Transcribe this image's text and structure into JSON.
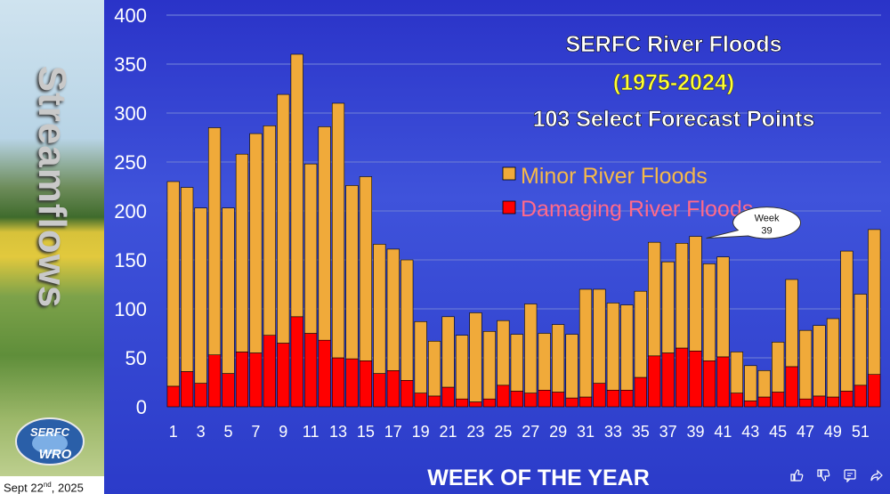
{
  "sidebar": {
    "title": "Streamflows",
    "logo_top": "SERFC",
    "logo_bottom": "WRO",
    "date_main": "Sept 22",
    "date_sup": "nd",
    "date_year": ", 2025"
  },
  "chart_data": {
    "type": "bar",
    "stacked": true,
    "title": "SERFC River Floods",
    "subtitle": "(1975-2024)",
    "subtitle2": "103 Select Forecast Points",
    "xlabel": "WEEK OF THE YEAR",
    "ylabel": "",
    "ylim": [
      0,
      400
    ],
    "yticks": [
      0,
      50,
      100,
      150,
      200,
      250,
      300,
      350,
      400
    ],
    "xtick_labels": [
      "1",
      "3",
      "5",
      "7",
      "9",
      "11",
      "13",
      "15",
      "17",
      "19",
      "21",
      "23",
      "25",
      "27",
      "29",
      "31",
      "33",
      "35",
      "37",
      "39",
      "41",
      "43",
      "45",
      "47",
      "49",
      "51"
    ],
    "categories": [
      1,
      2,
      3,
      4,
      5,
      6,
      7,
      8,
      9,
      10,
      11,
      12,
      13,
      14,
      15,
      16,
      17,
      18,
      19,
      20,
      21,
      22,
      23,
      24,
      25,
      26,
      27,
      28,
      29,
      30,
      31,
      32,
      33,
      34,
      35,
      36,
      37,
      38,
      39,
      40,
      41,
      42,
      43,
      44,
      45,
      46,
      47,
      48,
      49,
      50,
      51,
      52
    ],
    "totals": [
      230,
      224,
      203,
      285,
      203,
      258,
      279,
      287,
      319,
      360,
      248,
      286,
      310,
      226,
      235,
      166,
      161,
      150,
      87,
      67,
      92,
      73,
      96,
      77,
      88,
      74,
      105,
      75,
      84,
      74,
      120,
      120,
      106,
      104,
      118,
      168,
      148,
      167,
      174,
      146,
      153,
      56,
      42,
      37,
      66,
      130,
      78,
      83,
      90,
      159,
      115,
      181
    ],
    "legend": [
      "Minor River Floods",
      "Damaging River Floods"
    ],
    "legend_position": "top-right",
    "series": [
      {
        "name": "Damaging River Floods",
        "color": "#ff0000",
        "values": [
          21,
          36,
          24,
          53,
          34,
          56,
          55,
          73,
          65,
          92,
          75,
          68,
          50,
          49,
          47,
          34,
          37,
          27,
          14,
          11,
          20,
          8,
          5,
          8,
          22,
          16,
          14,
          17,
          15,
          9,
          10,
          24,
          17,
          17,
          30,
          52,
          55,
          60,
          57,
          47,
          51,
          14,
          6,
          10,
          15,
          41,
          8,
          11,
          10,
          16,
          22,
          33
        ]
      },
      {
        "name": "Minor River Floods",
        "color": "#f0aa3a",
        "values": [
          209,
          188,
          179,
          232,
          169,
          202,
          224,
          214,
          254,
          268,
          173,
          218,
          260,
          177,
          188,
          132,
          124,
          123,
          73,
          56,
          72,
          65,
          91,
          69,
          66,
          58,
          91,
          58,
          69,
          65,
          110,
          96,
          89,
          87,
          88,
          116,
          93,
          107,
          117,
          99,
          102,
          42,
          36,
          27,
          51,
          89,
          70,
          72,
          80,
          143,
          93,
          148
        ]
      }
    ],
    "annotation": {
      "line1": "Week",
      "line2": "39",
      "week": 39
    },
    "grid": true,
    "colors": {
      "gridline": "#5f6fd6",
      "axis_text": "#ffffff",
      "subtitle": "#ffff33",
      "title": "#ffffff"
    }
  },
  "icons": [
    "thumbs-up-icon",
    "thumbs-down-icon",
    "comment-icon",
    "share-icon"
  ]
}
